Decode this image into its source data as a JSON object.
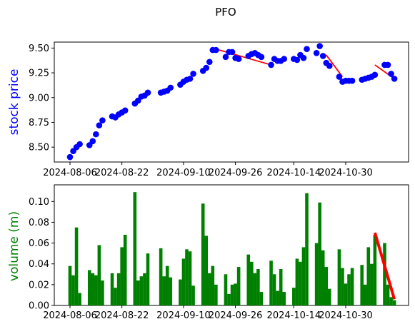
{
  "chart_data": [
    {
      "type": "scatter",
      "panel": "price",
      "title": "PFO",
      "xlabel": "",
      "ylabel": "stock price",
      "ylabel_color": "#0000ff",
      "x_ticks": [
        "2024-08-06",
        "2024-08-22",
        "2024-09-10",
        "2024-09-26",
        "2024-10-14",
        "2024-10-30"
      ],
      "y_ticks": [
        "8.50",
        "8.75",
        "9.00",
        "9.25",
        "9.50"
      ],
      "ylim": [
        8.35,
        9.56
      ],
      "grid": false,
      "series": [
        {
          "marker_color": "#0000ff",
          "x": [
            "2024-08-06",
            "2024-08-07",
            "2024-08-08",
            "2024-08-09",
            "2024-08-12",
            "2024-08-13",
            "2024-08-14",
            "2024-08-15",
            "2024-08-16",
            "2024-08-19",
            "2024-08-20",
            "2024-08-21",
            "2024-08-22",
            "2024-08-23",
            "2024-08-26",
            "2024-08-27",
            "2024-08-28",
            "2024-08-29",
            "2024-08-30",
            "2024-09-03",
            "2024-09-04",
            "2024-09-05",
            "2024-09-06",
            "2024-09-09",
            "2024-09-10",
            "2024-09-11",
            "2024-09-12",
            "2024-09-13",
            "2024-09-16",
            "2024-09-17",
            "2024-09-18",
            "2024-09-19",
            "2024-09-20",
            "2024-09-23",
            "2024-09-24",
            "2024-09-25",
            "2024-09-26",
            "2024-09-27",
            "2024-09-30",
            "2024-10-01",
            "2024-10-02",
            "2024-10-03",
            "2024-10-04",
            "2024-10-07",
            "2024-10-08",
            "2024-10-09",
            "2024-10-10",
            "2024-10-11",
            "2024-10-14",
            "2024-10-15",
            "2024-10-16",
            "2024-10-17",
            "2024-10-18",
            "2024-10-21",
            "2024-10-22",
            "2024-10-23",
            "2024-10-24",
            "2024-10-25",
            "2024-10-28",
            "2024-10-29",
            "2024-10-30",
            "2024-10-31",
            "2024-11-01",
            "2024-11-04",
            "2024-11-05",
            "2024-11-06",
            "2024-11-07",
            "2024-11-08",
            "2024-11-11",
            "2024-11-12",
            "2024-11-13",
            "2024-11-14"
          ],
          "y": [
            8.4,
            8.46,
            8.5,
            8.53,
            8.52,
            8.56,
            8.63,
            8.72,
            8.77,
            8.81,
            8.8,
            8.83,
            8.85,
            8.87,
            8.94,
            8.97,
            9.01,
            9.02,
            9.05,
            9.05,
            9.06,
            9.07,
            9.1,
            9.13,
            9.16,
            9.18,
            9.19,
            9.24,
            9.27,
            9.3,
            9.36,
            9.48,
            9.48,
            9.41,
            9.46,
            9.46,
            9.4,
            9.39,
            9.42,
            9.44,
            9.45,
            9.43,
            9.41,
            9.33,
            9.39,
            9.37,
            9.37,
            9.39,
            9.39,
            9.38,
            9.43,
            9.4,
            9.49,
            9.45,
            9.52,
            9.42,
            9.35,
            9.32,
            9.21,
            9.16,
            9.17,
            9.17,
            9.17,
            9.18,
            9.19,
            9.2,
            9.21,
            9.23,
            9.33,
            9.33,
            9.24,
            9.19
          ]
        }
      ],
      "trend_color": "#ff0000",
      "trend_lines": [
        {
          "x": [
            "2024-09-20",
            "2024-10-07"
          ],
          "y": [
            9.49,
            9.33
          ]
        },
        {
          "x": [
            "2024-10-24",
            "2024-10-29"
          ],
          "y": [
            9.43,
            9.21
          ]
        },
        {
          "x": [
            "2024-11-08",
            "2024-11-14"
          ],
          "y": [
            9.33,
            9.19
          ]
        }
      ]
    },
    {
      "type": "bar",
      "panel": "volume",
      "xlabel": "",
      "ylabel": "volume (m)",
      "ylabel_color": "#008000",
      "bar_color": "#008000",
      "x_ticks": [
        "2024-08-06",
        "2024-08-22",
        "2024-09-10",
        "2024-09-26",
        "2024-10-14",
        "2024-10-30"
      ],
      "y_ticks": [
        "0.00",
        "0.02",
        "0.04",
        "0.06",
        "0.08",
        "0.10"
      ],
      "ylim": [
        0,
        0.116
      ],
      "grid": false,
      "series": [
        {
          "x": [
            "2024-08-06",
            "2024-08-07",
            "2024-08-08",
            "2024-08-09",
            "2024-08-12",
            "2024-08-13",
            "2024-08-14",
            "2024-08-15",
            "2024-08-16",
            "2024-08-19",
            "2024-08-20",
            "2024-08-21",
            "2024-08-22",
            "2024-08-23",
            "2024-08-26",
            "2024-08-27",
            "2024-08-28",
            "2024-08-29",
            "2024-08-30",
            "2024-09-03",
            "2024-09-04",
            "2024-09-05",
            "2024-09-06",
            "2024-09-09",
            "2024-09-10",
            "2024-09-11",
            "2024-09-12",
            "2024-09-13",
            "2024-09-16",
            "2024-09-17",
            "2024-09-18",
            "2024-09-19",
            "2024-09-20",
            "2024-09-23",
            "2024-09-24",
            "2024-09-25",
            "2024-09-26",
            "2024-09-27",
            "2024-09-30",
            "2024-10-01",
            "2024-10-02",
            "2024-10-03",
            "2024-10-04",
            "2024-10-07",
            "2024-10-08",
            "2024-10-09",
            "2024-10-10",
            "2024-10-11",
            "2024-10-14",
            "2024-10-15",
            "2024-10-16",
            "2024-10-17",
            "2024-10-18",
            "2024-10-21",
            "2024-10-22",
            "2024-10-23",
            "2024-10-24",
            "2024-10-25",
            "2024-10-28",
            "2024-10-29",
            "2024-10-30",
            "2024-10-31",
            "2024-11-01",
            "2024-11-04",
            "2024-11-05",
            "2024-11-06",
            "2024-11-07",
            "2024-11-08",
            "2024-11-11",
            "2024-11-12",
            "2024-11-13",
            "2024-11-14"
          ],
          "values": [
            0.038,
            0.029,
            0.075,
            0.012,
            0.034,
            0.031,
            0.029,
            0.058,
            0.024,
            0.031,
            0.017,
            0.031,
            0.056,
            0.068,
            0.109,
            0.024,
            0.028,
            0.031,
            0.05,
            0.055,
            0.028,
            0.038,
            0.027,
            0.025,
            0.045,
            0.054,
            0.052,
            0.019,
            0.098,
            0.067,
            0.031,
            0.038,
            0.02,
            0.03,
            0.011,
            0.02,
            0.021,
            0.037,
            0.049,
            0.042,
            0.031,
            0.035,
            0.013,
            0.043,
            0.03,
            0.014,
            0.035,
            0.013,
            0.017,
            0.045,
            0.042,
            0.056,
            0.108,
            0.06,
            0.099,
            0.053,
            0.037,
            0.016,
            0.054,
            0.036,
            0.021,
            0.03,
            0.036,
            0.039,
            0.02,
            0.056,
            0.04,
            0.068,
            0.06,
            0.02,
            0.008,
            0.005
          ]
        }
      ],
      "trend_color": "#ff0000",
      "trend_lines": [
        {
          "x": [
            "2024-11-08",
            "2024-11-14"
          ],
          "y": [
            0.07,
            0.006
          ]
        }
      ]
    }
  ]
}
